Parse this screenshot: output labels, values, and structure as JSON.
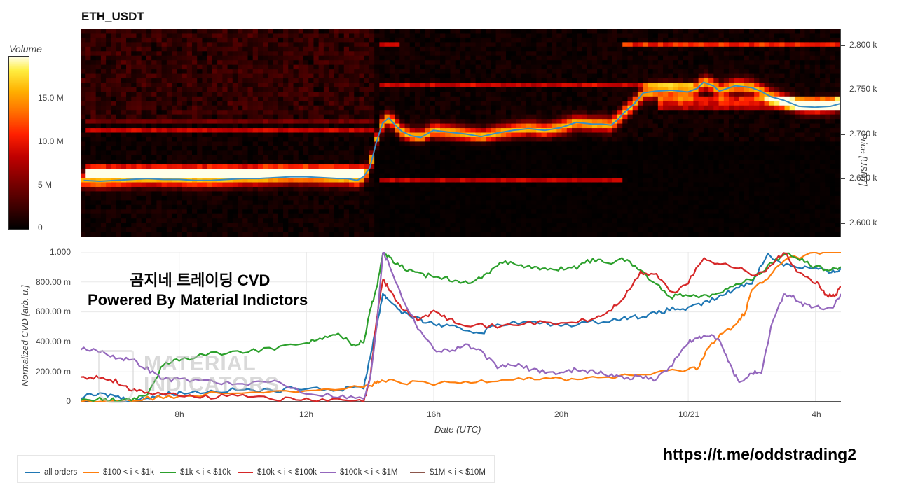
{
  "title": "ETH_USDT",
  "colorbar": {
    "label": "Volume",
    "ticks": [
      "15.0 M",
      "10.0 M",
      "5 M",
      "0"
    ],
    "tick_values": [
      15,
      10,
      5,
      0
    ]
  },
  "overlay": {
    "line1": "곰지네 트레이딩 CVD",
    "line2": "Powered By Material Indictors"
  },
  "watermark": {
    "line1": "MATERIAL",
    "line2": "INDICATORS"
  },
  "link": "https://t.me/oddstrading2",
  "chart_data": [
    {
      "type": "heatmap",
      "title": "ETH_USDT",
      "ylabel": "Price [USDT]",
      "y_ticks": [
        "2.800 k",
        "2.750 k",
        "2.700 k",
        "2.650 k",
        "2.600 k"
      ],
      "y_tick_values": [
        2800,
        2750,
        2700,
        2650,
        2600
      ],
      "ylim": [
        2585,
        2818
      ],
      "colorbar_label": "Volume",
      "color_range": [
        0,
        19
      ],
      "price_line": {
        "color": "#3b8fc4",
        "t": [
          5.0,
          5.5,
          6.0,
          6.5,
          7.0,
          7.5,
          8.0,
          8.5,
          9.0,
          9.5,
          10.0,
          10.5,
          11.0,
          11.5,
          12.0,
          12.5,
          13.0,
          13.3,
          13.6,
          13.8,
          14.0,
          14.2,
          14.4,
          14.6,
          14.8,
          15.0,
          15.3,
          15.6,
          16.0,
          16.5,
          17.0,
          17.5,
          18.0,
          18.5,
          19.0,
          19.5,
          20.0,
          20.5,
          21.0,
          21.3,
          21.6,
          21.8,
          22.0,
          22.3,
          22.6,
          23.0,
          23.5,
          24.0,
          24.3,
          24.5,
          24.8,
          25.0,
          25.5,
          26.0,
          26.3,
          26.6,
          27.0,
          27.5,
          28.0,
          28.5,
          28.8
        ],
        "price": [
          2648,
          2647,
          2648,
          2649,
          2650,
          2649,
          2649,
          2648,
          2648,
          2649,
          2650,
          2650,
          2651,
          2652,
          2652,
          2651,
          2650,
          2650,
          2648,
          2652,
          2662,
          2690,
          2712,
          2718,
          2710,
          2703,
          2698,
          2696,
          2704,
          2702,
          2700,
          2697,
          2701,
          2704,
          2706,
          2704,
          2707,
          2713,
          2711,
          2711,
          2710,
          2716,
          2724,
          2733,
          2746,
          2748,
          2749,
          2747,
          2751,
          2758,
          2754,
          2748,
          2754,
          2752,
          2748,
          2742,
          2738,
          2731,
          2730,
          2731,
          2734
        ]
      },
      "volume_bands": [
        {
          "price": 2655,
          "t0": 5.0,
          "t1": 13.9,
          "level": 12
        },
        {
          "price": 2662,
          "t0": 5.0,
          "t1": 13.9,
          "level": 9
        },
        {
          "price": 2703,
          "t0": 5.0,
          "t1": 14.2,
          "level": 8
        },
        {
          "price": 2715,
          "t0": 5.0,
          "t1": 14.2,
          "level": 4
        },
        {
          "price": 2648,
          "t0": 14.3,
          "t1": 22.0,
          "level": 8
        },
        {
          "price": 2800,
          "t0": 14.3,
          "t1": 15.0,
          "level": 9
        },
        {
          "price": 2755,
          "t0": 14.3,
          "t1": 24.2,
          "level": 8
        },
        {
          "price": 2800,
          "t0": 22.0,
          "t1": 28.8,
          "level": 10
        },
        {
          "price": 2738,
          "t0": 23.0,
          "t1": 28.8,
          "level": 9
        },
        {
          "price": 2730,
          "t0": 23.0,
          "t1": 28.8,
          "level": 7
        }
      ]
    },
    {
      "type": "line",
      "ylabel": "Normalized CVD [arb. u.]",
      "xlabel": "Date (UTC)",
      "ylim": [
        0,
        1.0
      ],
      "y_ticks": [
        "1.000",
        "800.00 m",
        "600.00 m",
        "400.00 m",
        "200.00 m",
        "0"
      ],
      "y_tick_values": [
        1.0,
        0.8,
        0.6,
        0.4,
        0.2,
        0
      ],
      "x_ticks": [
        "8h",
        "12h",
        "16h",
        "20h",
        "10/21",
        "4h"
      ],
      "x_tick_values": [
        8,
        12,
        16,
        20,
        24,
        28
      ],
      "xlim": [
        4.9,
        28.8
      ],
      "grid": true,
      "legend_position": "bottom-left",
      "series": [
        {
          "name": "all orders",
          "color": "#1f77b4",
          "x": [
            4.9,
            5.5,
            6.0,
            6.5,
            7.0,
            7.5,
            8.0,
            9.0,
            10.0,
            11.0,
            12.0,
            13.0,
            13.8,
            14.0,
            14.2,
            14.4,
            14.6,
            15.0,
            15.5,
            16.0,
            16.5,
            17.0,
            17.5,
            18.0,
            19.0,
            20.0,
            21.0,
            22.0,
            22.5,
            23.0,
            23.5,
            24.0,
            24.5,
            25.0,
            25.5,
            26.0,
            26.5,
            27.0,
            27.5,
            28.0,
            28.5,
            28.8
          ],
          "y": [
            0.03,
            0.05,
            0.04,
            0.0,
            0.03,
            0.05,
            0.06,
            0.07,
            0.08,
            0.07,
            0.1,
            0.08,
            0.1,
            0.3,
            0.5,
            0.72,
            0.68,
            0.6,
            0.55,
            0.52,
            0.5,
            0.48,
            0.46,
            0.52,
            0.53,
            0.51,
            0.53,
            0.56,
            0.57,
            0.59,
            0.62,
            0.62,
            0.66,
            0.7,
            0.76,
            0.8,
            0.98,
            0.92,
            0.9,
            0.89,
            0.86,
            0.89
          ]
        },
        {
          "name": "$100 < i < $1k",
          "color": "#ff7f0e",
          "x": [
            4.9,
            6.0,
            7.0,
            8.0,
            10.0,
            12.0,
            13.8,
            14.2,
            14.4,
            15.0,
            16.0,
            17.0,
            18.0,
            19.0,
            20.0,
            21.0,
            22.0,
            23.0,
            24.0,
            24.3,
            24.6,
            25.0,
            25.5,
            25.8,
            26.0,
            26.5,
            27.0,
            28.0,
            28.8
          ],
          "y": [
            0.0,
            0.01,
            0.02,
            0.04,
            0.07,
            0.08,
            0.1,
            0.12,
            0.14,
            0.13,
            0.12,
            0.13,
            0.15,
            0.16,
            0.15,
            0.16,
            0.17,
            0.19,
            0.22,
            0.23,
            0.35,
            0.44,
            0.52,
            0.6,
            0.75,
            0.82,
            0.95,
            0.99,
            1.0
          ]
        },
        {
          "name": "$1k < i < $10k",
          "color": "#2ca02c",
          "x": [
            4.9,
            5.5,
            6.0,
            6.5,
            7.0,
            7.5,
            8.0,
            9.0,
            10.0,
            11.0,
            12.0,
            12.5,
            13.0,
            13.5,
            13.8,
            14.0,
            14.2,
            14.4,
            14.6,
            15.0,
            15.5,
            16.0,
            16.5,
            17.0,
            17.5,
            18.0,
            18.5,
            19.0,
            19.5,
            20.0,
            20.5,
            21.0,
            21.5,
            22.0,
            22.5,
            23.0,
            23.5,
            24.0,
            24.5,
            25.0,
            25.5,
            26.0,
            26.5,
            27.0,
            27.5,
            28.0,
            28.5,
            28.8
          ],
          "y": [
            0.01,
            0.02,
            0.01,
            0.01,
            0.05,
            0.25,
            0.28,
            0.32,
            0.33,
            0.36,
            0.4,
            0.42,
            0.45,
            0.38,
            0.4,
            0.62,
            0.75,
            1.0,
            0.96,
            0.9,
            0.85,
            0.84,
            0.82,
            0.8,
            0.82,
            0.92,
            0.93,
            0.9,
            0.88,
            0.89,
            0.9,
            0.95,
            0.93,
            0.95,
            0.88,
            0.78,
            0.7,
            0.72,
            0.7,
            0.74,
            0.78,
            0.82,
            0.9,
            0.99,
            0.95,
            0.9,
            0.88,
            0.9
          ]
        },
        {
          "name": "$10k < i < $100k",
          "color": "#d62728",
          "x": [
            4.9,
            5.5,
            6.0,
            6.5,
            7.0,
            8.0,
            9.0,
            10.0,
            11.0,
            12.0,
            13.0,
            13.8,
            14.0,
            14.2,
            14.4,
            14.6,
            15.0,
            15.5,
            16.0,
            16.5,
            17.0,
            18.0,
            19.0,
            20.0,
            21.0,
            21.5,
            22.0,
            22.5,
            23.0,
            23.5,
            24.0,
            24.5,
            25.0,
            25.5,
            26.0,
            26.5,
            27.0,
            27.5,
            28.0,
            28.3,
            28.6,
            28.8
          ],
          "y": [
            0.17,
            0.16,
            0.14,
            0.08,
            0.05,
            0.05,
            0.03,
            0.05,
            0.02,
            0.01,
            0.01,
            0.0,
            0.15,
            0.55,
            0.82,
            0.75,
            0.62,
            0.55,
            0.6,
            0.55,
            0.52,
            0.5,
            0.53,
            0.52,
            0.55,
            0.6,
            0.7,
            0.86,
            0.85,
            0.72,
            0.8,
            0.96,
            0.92,
            0.9,
            0.85,
            0.88,
            1.0,
            0.85,
            0.8,
            0.72,
            0.7,
            0.77
          ]
        },
        {
          "name": "$100k < i < $1M",
          "color": "#9467bd",
          "x": [
            4.9,
            5.5,
            6.0,
            6.5,
            7.0,
            7.5,
            8.0,
            9.0,
            10.0,
            11.0,
            12.0,
            13.0,
            13.8,
            14.0,
            14.2,
            14.4,
            14.6,
            15.0,
            15.5,
            16.0,
            16.5,
            17.0,
            17.5,
            18.0,
            18.5,
            19.0,
            19.5,
            20.0,
            20.5,
            21.0,
            21.5,
            22.0,
            22.5,
            23.0,
            23.5,
            24.0,
            24.3,
            24.6,
            25.0,
            25.3,
            25.6,
            26.0,
            26.3,
            26.6,
            27.0,
            27.3,
            27.6,
            28.0,
            28.5,
            28.8
          ],
          "y": [
            0.35,
            0.34,
            0.3,
            0.28,
            0.22,
            0.15,
            0.15,
            0.14,
            0.11,
            0.14,
            0.06,
            0.04,
            0.02,
            0.15,
            0.5,
            1.0,
            0.92,
            0.7,
            0.5,
            0.35,
            0.34,
            0.38,
            0.33,
            0.23,
            0.25,
            0.22,
            0.2,
            0.19,
            0.22,
            0.2,
            0.18,
            0.16,
            0.17,
            0.15,
            0.25,
            0.4,
            0.42,
            0.45,
            0.4,
            0.25,
            0.12,
            0.2,
            0.18,
            0.5,
            0.72,
            0.7,
            0.65,
            0.63,
            0.62,
            0.72
          ]
        },
        {
          "name": "$1M < i < $10M",
          "color": "#8c564b",
          "x": [],
          "y": []
        }
      ]
    }
  ]
}
